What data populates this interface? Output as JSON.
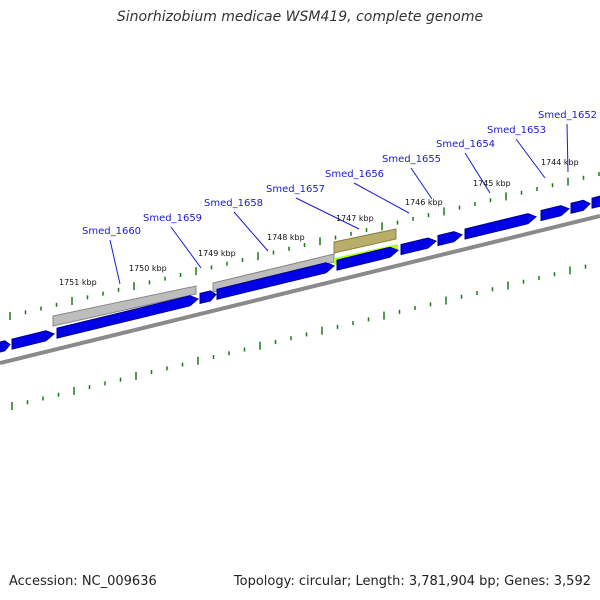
{
  "title": "Sinorhizobium medicae WSM419, complete genome",
  "footer": {
    "accession": "Accession: NC_009636",
    "topology": "Topology: circular; Length: 3,781,904 bp; Genes: 3,592"
  },
  "colors": {
    "gene_fill": "#0000e8",
    "backbone": "#8a8a8a",
    "region_gray": "#bdbdbd",
    "region_khaki": "#b8ad6a",
    "highlight_green": "#aaff22",
    "tick_green": "#1a7a1a",
    "label_blue": "#1a1ad6"
  },
  "scale_labels": [
    "1744 kbp",
    "1745 kbp",
    "1746 kbp",
    "1747 kbp",
    "1748 kbp",
    "1749 kbp",
    "1750 kbp",
    "1751 kbp"
  ],
  "gene_labels": [
    "Smed_1652",
    "Smed_1653",
    "Smed_1654",
    "Smed_1655",
    "Smed_1656",
    "Smed_1657",
    "Smed_1658",
    "Smed_1659",
    "Smed_1660"
  ]
}
